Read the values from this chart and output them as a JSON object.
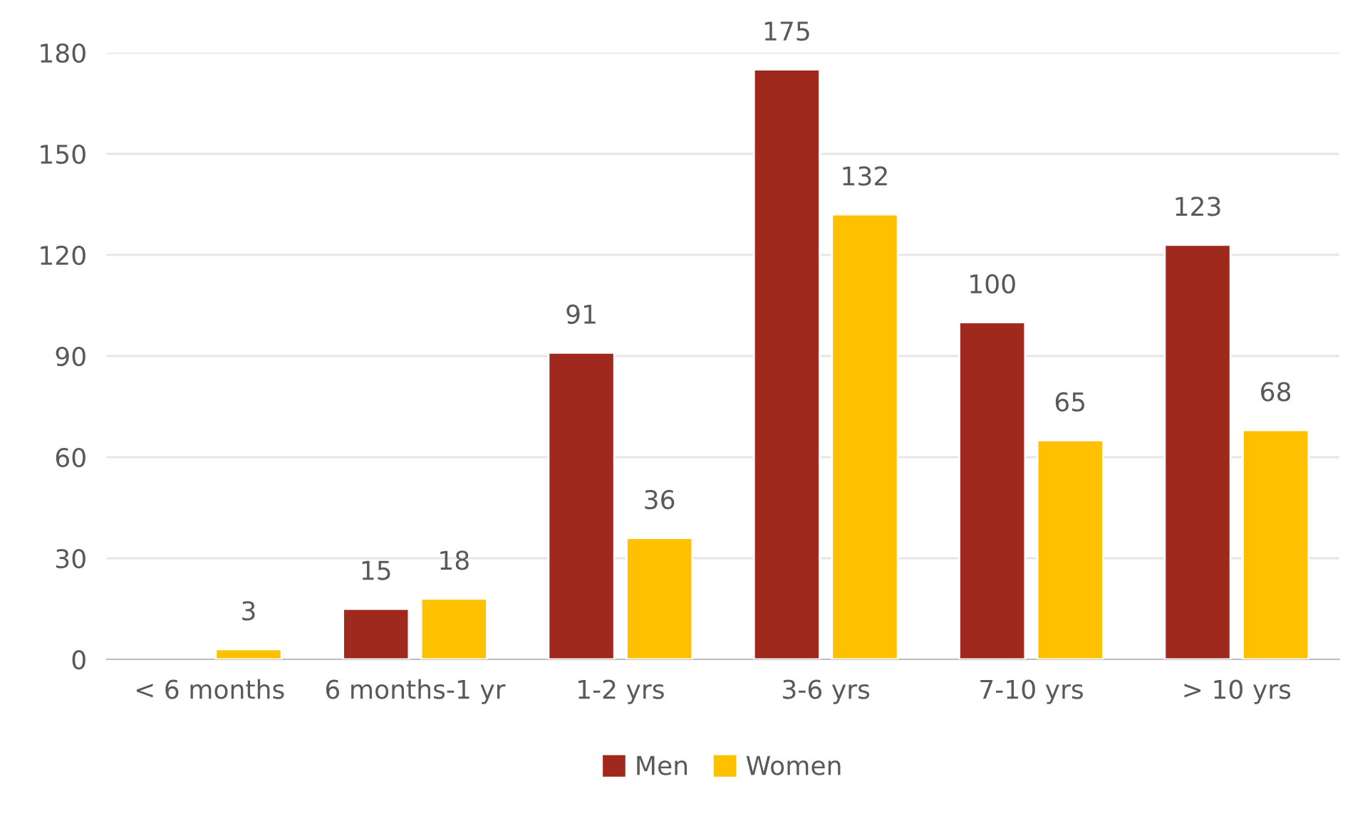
{
  "chart_data": {
    "type": "bar",
    "categories": [
      "< 6 months",
      "6 months-1 yr",
      "1-2 yrs",
      "3-6 yrs",
      "7-10 yrs",
      "> 10 yrs"
    ],
    "series": [
      {
        "name": "Men",
        "color": "#a0291e",
        "values": [
          null,
          15,
          91,
          175,
          100,
          123
        ]
      },
      {
        "name": "Women",
        "color": "#ffc000",
        "values": [
          3,
          18,
          36,
          132,
          65,
          68
        ]
      }
    ],
    "ylim": [
      0,
      180
    ],
    "yticks": [
      0,
      30,
      60,
      90,
      120,
      150,
      180
    ],
    "grid": "y",
    "legend": "bottom",
    "data_labels": true
  }
}
